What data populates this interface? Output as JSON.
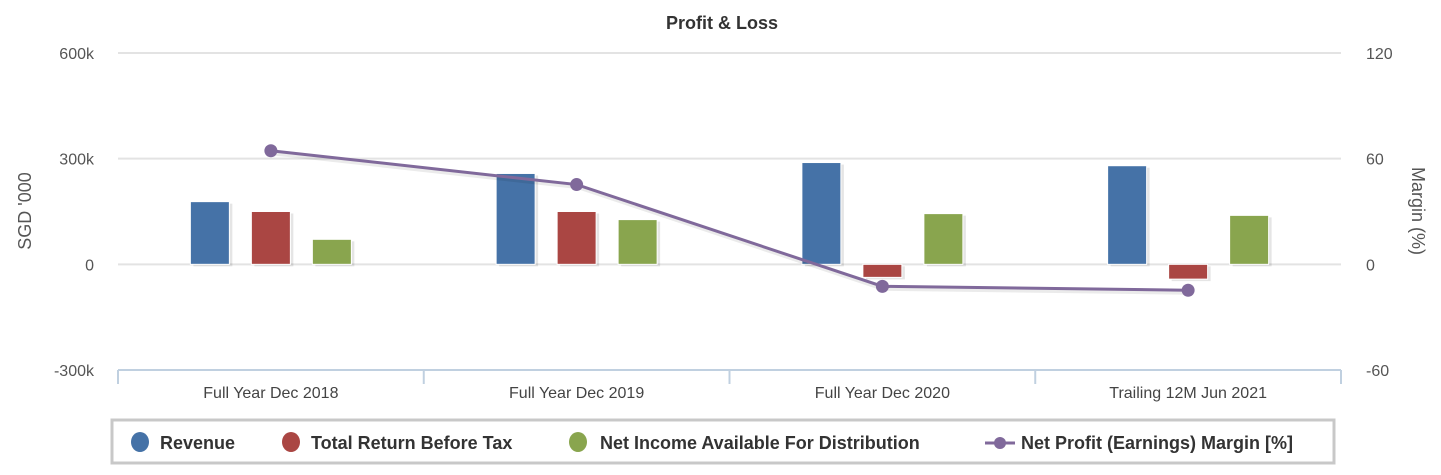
{
  "chart_data": {
    "type": "bar",
    "title": "Profit & Loss",
    "categories": [
      "Full Year Dec 2018",
      "Full Year Dec 2019",
      "Full Year Dec 2020",
      "Trailing 12M Jun 2021"
    ],
    "ylabel": "SGD '000",
    "ylabel_right": "Margin (%)",
    "ylim": [
      -300000,
      600000
    ],
    "ylim_right": [
      -60,
      120
    ],
    "yticks": [
      -300000,
      0,
      300000,
      600000
    ],
    "ytick_labels": [
      "-300k",
      "0",
      "300k",
      "600k"
    ],
    "yticks_right": [
      -60,
      0,
      60,
      120
    ],
    "ytick_labels_right": [
      "-60",
      "0",
      "60",
      "120"
    ],
    "grid": true,
    "legend_position": "bottom",
    "series": [
      {
        "name": "Revenue",
        "type": "bar",
        "axis": "left",
        "color": "#4572A7",
        "values": [
          178000,
          258000,
          289000,
          280000
        ]
      },
      {
        "name": "Total Return Before Tax",
        "type": "bar",
        "axis": "left",
        "color": "#AA4643",
        "values": [
          150000,
          150000,
          -37000,
          -42000
        ]
      },
      {
        "name": "Net Income Available For Distribution",
        "type": "bar",
        "axis": "left",
        "color": "#89A54E",
        "values": [
          71000,
          127000,
          144000,
          139000
        ]
      },
      {
        "name": "Net Profit (Earnings) Margin [%]",
        "type": "line",
        "axis": "right",
        "color": "#80699B",
        "values": [
          64.5,
          45.3,
          -12.5,
          -14.7
        ]
      }
    ]
  }
}
